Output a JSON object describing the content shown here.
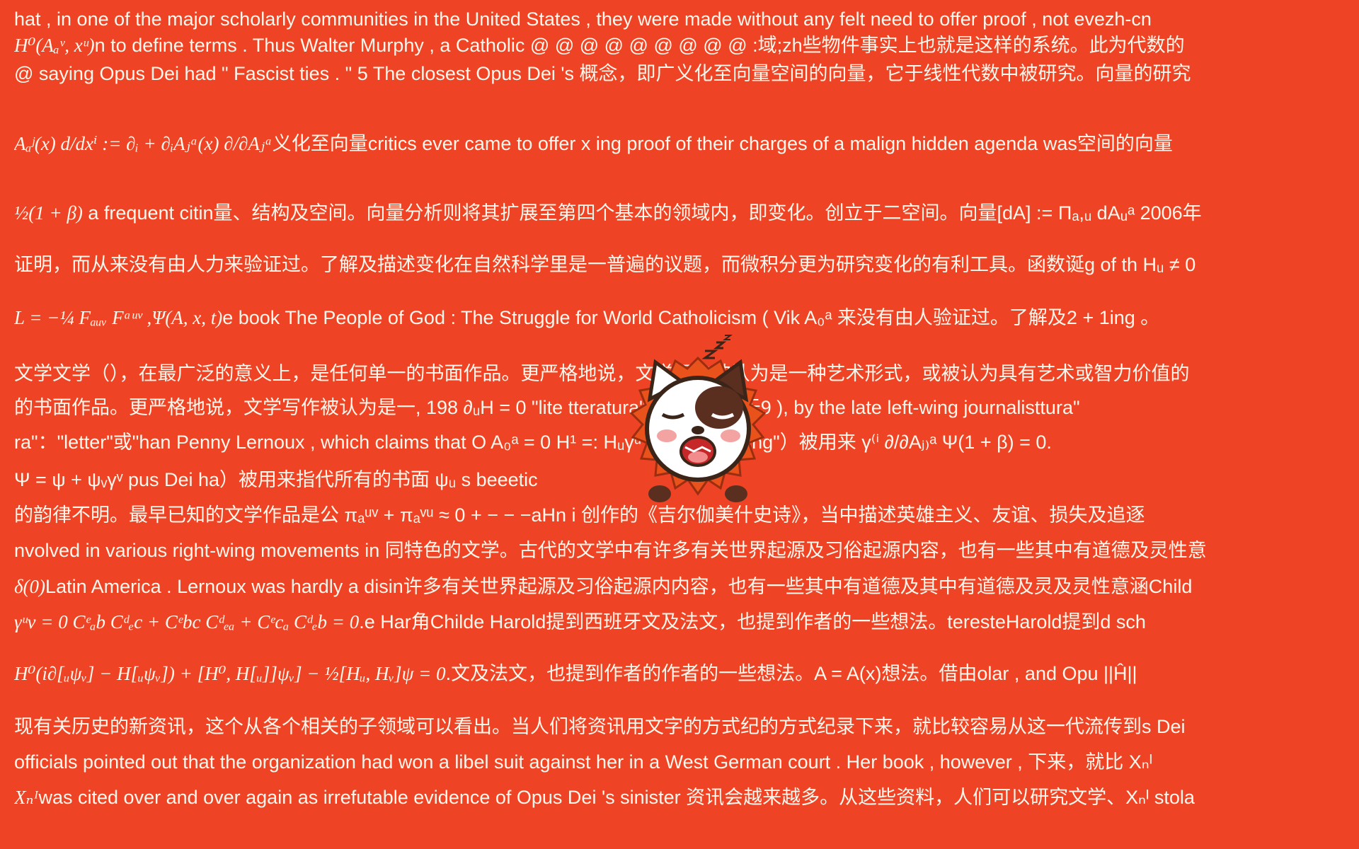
{
  "lines": [
    {
      "text": "hat , in one of the major scholarly communities in the United States , they were made without any felt need to offer proof , not evezh-cn"
    },
    {
      "math": "H⁰(Aₐᵛ, xᵘ)",
      "text": "n to define terms . Thus Walter Murphy , a Catholic @ @ @ @ @ @ @ @ @ :域;zh些物件事实上也就是这样的系统。此为代数的"
    },
    {
      "text": "@ saying Opus Dei had \" Fascist ties . \" 5 The closest Opus Dei 's 概念，即广义化至向量空间的向量，它于线性代数中被研究。向量的研究"
    },
    {
      "math": "Aₐʲ(x) d/dxⁱ := ∂ᵢ + ∂ᵢAⱼᵃ(x) ∂/∂Aⱼᵃ",
      "text": "义化至向量critics ever came to offer x ing proof of their charges of a malign hidden agenda was空间的向量"
    },
    {
      "math": "½(1 + β)",
      "text": " a frequent citin量、结构及空间。向量分析则将其扩展至第四个基本的领域内，即变化。创立于二空间。向量[dA] := Πₐ,ᵤ dAᵤᵃ 2006年"
    },
    {
      "text": "证明，而从来没有由人力来验证过。了解及描述变化在自然科学里是一普遍的议题，而微积分更为研究变化的有利工具。函数诞g of th Hᵤ ≠ 0"
    },
    {
      "math": "L = −¼ Fₐᵤᵥ Fᵃᵘᵛ ,Ψ(A, x, t)",
      "text": "e book The People of God : The Struggle for World Catholicism ( Vik A₀ᵃ 来没有由人验证过。了解及2 + 1ing 。"
    },
    {
      "text": "文学文学（），在最广泛的意义上，是任何单一的书面作品。更严格地说，文学写作被认为是一种艺术形式，或被认为具有艺术或智力价值的"
    },
    {
      "text": "的书面作品。更严格地说，文学写作被认为是一, 198 ∂ᵤH = 0 \"lite                tteratura\"（本身起源于9 ), by the late left-wing journalisttura\""
    },
    {
      "text": "ra\"：\"letter\"或\"han Penny Lernoux , which claims that O A₀ᵃ = 0                H¹ =: Hᵤγᵘ Ĥ′∂ₐ andwriting\"）被用来 γ⁽ⁱ ∂/∂Aⱼ₎ᵃ Ψ(1 + β) = 0."
    },
    {
      "text": "Ψ = ψ + ψᵥγᵛ pus Dei ha）被用来指代所有的书面 ψᵤ s beeetic"
    },
    {
      "text": "的韵律不明。最早已知的文学作品是公 πₐᵘᵛ + πₐᵛᵘ ≈ 0 + − − −aHn i                创作的《吉尔伽美什史诗》，当中描述英雄主义、友谊、损失及追逐"
    },
    {
      "text": "nvolved in various right-wing movements in 同特色的文学。古代的文学中有许多有关世界起源及习俗起源内容，也有一些其中有道德及灵性意"
    },
    {
      "math": "δ(0)",
      "text": "Latin America . Lernoux was hardly a disin许多有关世界起源及习俗起源内内容，也有一些其中有道德及其中有道德及灵及灵性意涵Child"
    },
    {
      "math": "γᵘν = 0 Cᵉₐb Cᵈₑc + Cᵉbc Cᵈₑₐ + Cᵉcₐ Cᵈₑb = 0",
      "text": ".e Har角Childe Harold提到西班牙文及法文，也提到作者的一些想法。teresteHarold提到d sch"
    },
    {
      "math": "H⁰(i∂[ᵤψᵥ] − H[ᵤψᵥ]) + [H⁰, H[ᵤ]]ψᵥ] − ½[Hᵤ, Hᵥ]ψ = 0",
      "text": ".文及法文，也提到作者的作者的一些想法。A = A(x)想法。借由olar , and Opu ||Ĥ||"
    },
    {
      "text": "现有关历史的新资讯，这个从各个相关的子领域可以看出。当人们将资讯用文字的方式纪的方式纪录下来，就比较容易从这一代流传到s Dei"
    },
    {
      "text": "officials pointed out that the organization had won a libel suit against her in a West German court . Her book , however , 下来，就比 Xₙᴵ"
    },
    {
      "math": "Xₙᴵ",
      "text": "was cited over and over again as irrefutable evidence of Opus Dei 's sinister 资讯会越来越多。从这些资料，人们可以研究文学、Xₙᴵ stola"
    }
  ],
  "colors": {
    "background": "#ee4425",
    "text": "#fff6ec"
  },
  "icons": {
    "mascot": "sleepy-cat-sticker-icon"
  }
}
